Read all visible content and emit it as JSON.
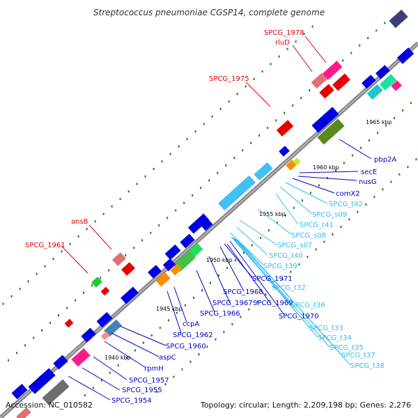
{
  "title": "Streptococcus pneumoniae CGSP14, complete genome",
  "footer": {
    "accession": "Accession: NC_010582",
    "summary": "Topology: circular; Length: 2,209,198 bp; Genes: 2,276"
  },
  "colors": {
    "backbone": "#888888",
    "cds": "#0000e0",
    "trna": "#41c1f0",
    "rrna_label": "#e00000",
    "tick": "#1b7a1b"
  },
  "kbp_marks": [
    "1940 kbp",
    "1945 kbp",
    "1950 kbp",
    "1955 kbp",
    "1960 kbp",
    "1965 kbp"
  ],
  "labels": {
    "red": [
      "SPCG_1978",
      "rluD",
      "SPCG_1975",
      "ansB",
      "SPCG_1961"
    ],
    "blue": [
      "pbp2A",
      "secE",
      "nusG",
      "comX2",
      "SPCG_1971",
      "SPCG_1968",
      "SPCG_1967",
      "SPCG_1969",
      "SPCG_1966",
      "SPCG_1970",
      "ccpA",
      "SPCG_1962",
      "SPCG_1960",
      "aspC",
      "rpmH",
      "SPCG_1957",
      "SPCG_1955",
      "SPCG_1954"
    ],
    "cyan": [
      "SPCG_t42",
      "SPCG_s09",
      "SPCG_t41",
      "SPCG_s08",
      "SPCG_s07",
      "SPCG_t40",
      "SPCG_t39",
      "SPCG_t32",
      "SPCG_t36",
      "SPCG_t33",
      "SPCG_t34",
      "SPCG_t35",
      "SPCG_t37",
      "SPCG_t38"
    ]
  }
}
